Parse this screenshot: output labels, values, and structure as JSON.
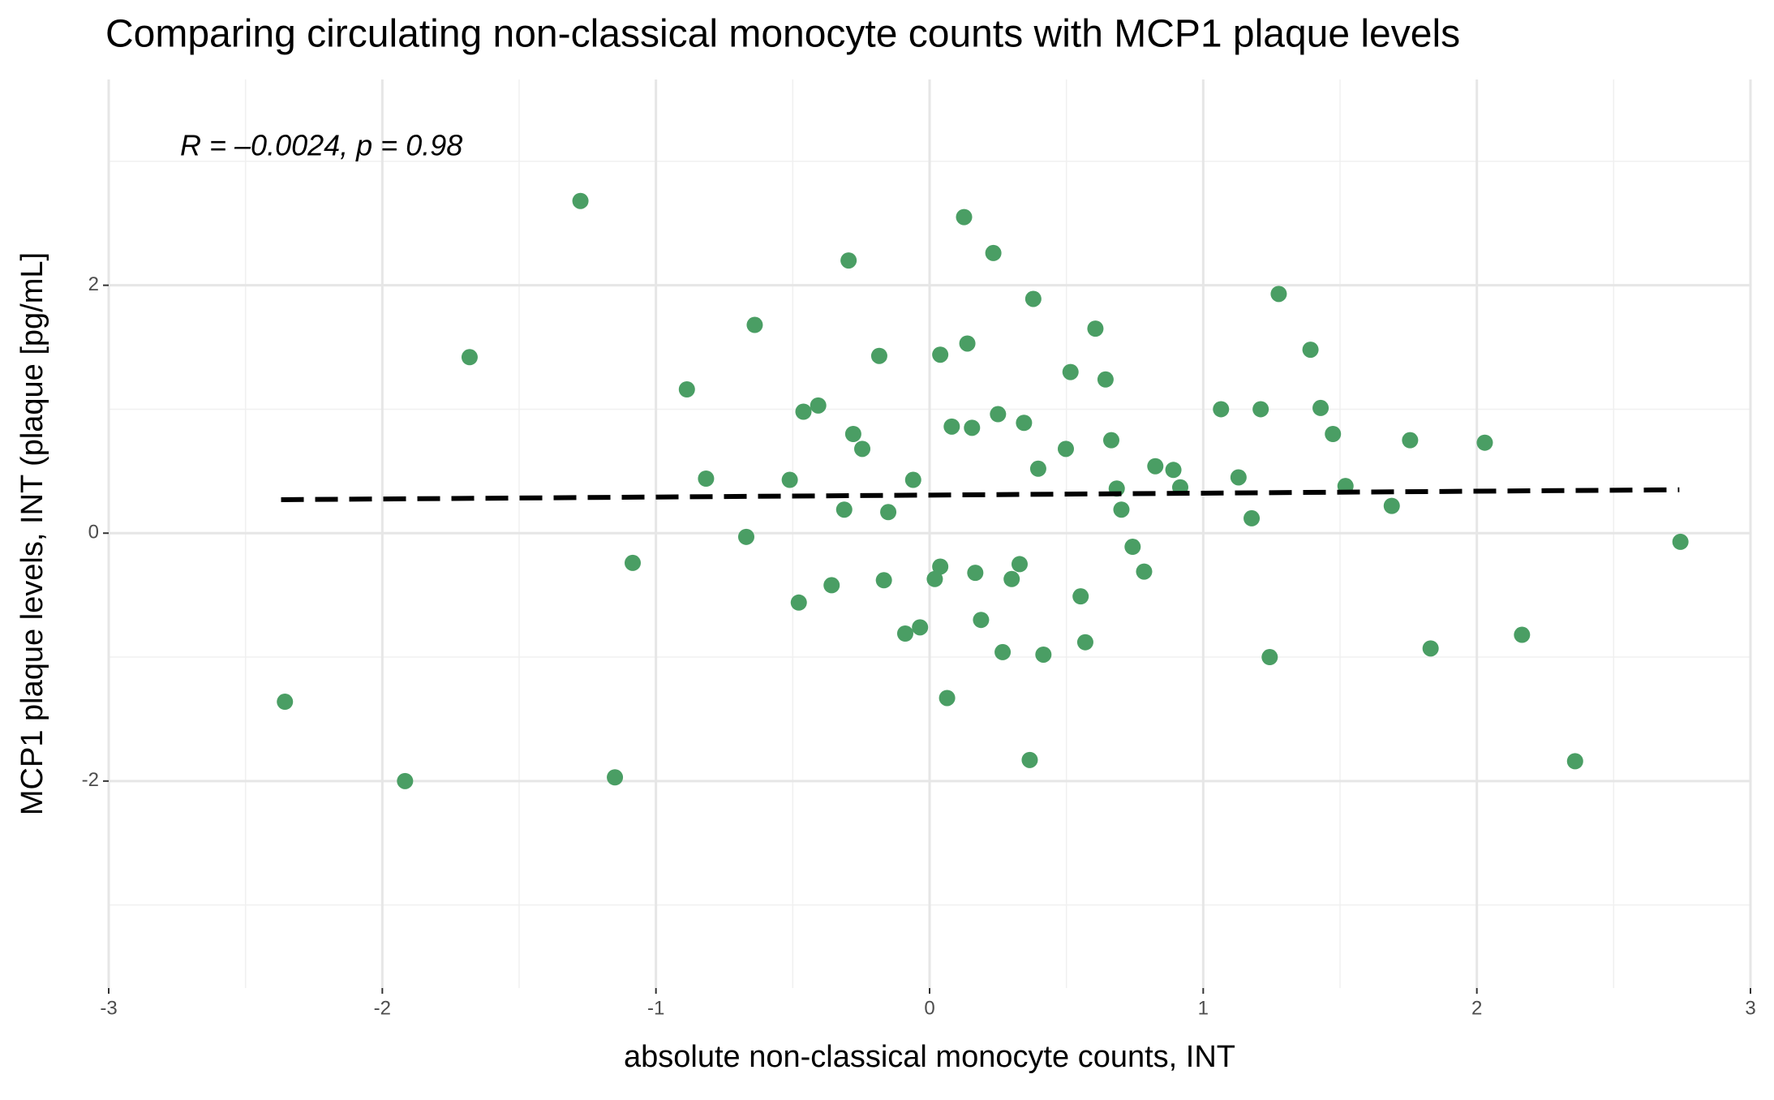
{
  "chart_data": {
    "type": "scatter",
    "title": "Comparing circulating non-classical monocyte counts with MCP1 plaque levels",
    "x_label": "absolute non-classical monocyte counts, INT",
    "y_label": "MCP1 plaque levels, INT (plaque [pg/mL]",
    "annotation": "R = –0.0024, p = 0.98",
    "color": "#4a9e64",
    "grid": true,
    "xlim": [
      -3,
      3
    ],
    "ylim": [
      -3.67,
      3.66
    ],
    "xticks": [
      -3,
      -2,
      -1,
      0,
      1,
      2,
      3
    ],
    "yticks": [
      -2,
      0,
      2
    ],
    "x": [
      -1.276,
      0.126,
      0.233,
      -0.296,
      1.276,
      0.379,
      -0.639,
      0.606,
      -1.681,
      0.138,
      -0.184,
      0.039,
      1.392,
      0.515,
      0.643,
      -0.887,
      -0.407,
      -0.461,
      1.065,
      1.21,
      1.429,
      0.25,
      0.345,
      0.081,
      0.155,
      -0.279,
      1.474,
      0.664,
      1.756,
      2.029,
      -0.246,
      0.498,
      0.825,
      0.397,
      0.891,
      -0.817,
      -0.511,
      -0.06,
      1.129,
      0.916,
      0.684,
      1.52,
      -0.312,
      0.701,
      -0.151,
      1.689,
      1.177,
      -0.67,
      2.744,
      0.742,
      -1.085,
      0.329,
      0.039,
      0.167,
      0.784,
      0.019,
      0.3,
      -0.167,
      -0.358,
      0.552,
      -0.478,
      0.188,
      -0.035,
      -0.089,
      2.165,
      0.569,
      1.831,
      0.267,
      0.416,
      1.243,
      -2.356,
      0.064,
      -1.15,
      -1.917,
      0.366,
      2.359
    ],
    "values": [
      2.68,
      2.55,
      2.26,
      2.2,
      1.93,
      1.89,
      1.68,
      1.65,
      1.42,
      1.53,
      1.43,
      1.44,
      1.48,
      1.3,
      1.24,
      1.16,
      1.03,
      0.98,
      1.0,
      1.0,
      1.01,
      0.96,
      0.89,
      0.86,
      0.85,
      0.8,
      0.8,
      0.75,
      0.75,
      0.73,
      0.68,
      0.68,
      0.54,
      0.52,
      0.51,
      0.44,
      0.43,
      0.43,
      0.45,
      0.37,
      0.36,
      0.38,
      0.19,
      0.19,
      0.17,
      0.22,
      0.12,
      -0.03,
      -0.07,
      -0.11,
      -0.24,
      -0.25,
      -0.27,
      -0.32,
      -0.31,
      -0.37,
      -0.37,
      -0.38,
      -0.42,
      -0.51,
      -0.56,
      -0.7,
      -0.76,
      -0.81,
      -0.82,
      -0.88,
      -0.93,
      -0.96,
      -0.98,
      -1.0,
      -1.36,
      -1.33,
      -1.97,
      -2.0,
      -1.83,
      -1.84
    ],
    "trend_line": {
      "x": [
        -2.37,
        2.74
      ],
      "y": [
        0.27,
        0.35
      ]
    }
  }
}
